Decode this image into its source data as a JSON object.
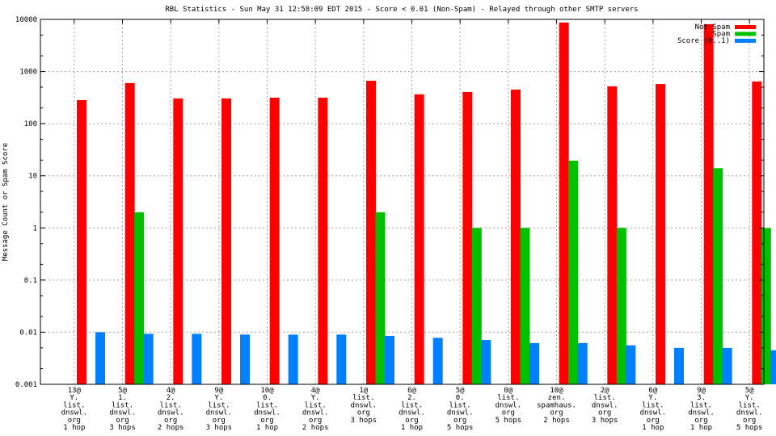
{
  "chart_data": {
    "type": "bar",
    "title": "RBL Statistics - Sun May 31 12:58:09 EDT 2015 - Score < 0.01 (Non-Spam) - Relayed through other SMTP servers",
    "xlabel": "",
    "ylabel": "Message Count or Spam Score",
    "yscale": "log",
    "ylim": [
      0.001,
      10000
    ],
    "yticks": [
      "0.001",
      "0.01",
      "0.1",
      "1",
      "10",
      "100",
      "1000",
      "10000"
    ],
    "ytick_values": [
      0.001,
      0.01,
      0.1,
      1,
      10,
      100,
      1000,
      10000
    ],
    "grid": true,
    "legend_position": "top-right",
    "categories": [
      [
        "13@",
        "Y.",
        "list.",
        "dnswl.",
        "org",
        "1 hop"
      ],
      [
        "5@",
        "1.",
        "list.",
        "dnswl.",
        "org",
        "3 hops"
      ],
      [
        "4@",
        "2.",
        "list.",
        "dnswl.",
        "org",
        "2 hops"
      ],
      [
        "9@",
        "Y.",
        "list.",
        "dnswl.",
        "org",
        "3 hops"
      ],
      [
        "10@",
        "0.",
        "list.",
        "dnswl.",
        "org",
        "1 hop"
      ],
      [
        "4@",
        "Y.",
        "list.",
        "dnswl.",
        "org",
        "2 hops"
      ],
      [
        "1@",
        "list.",
        "dnswl.",
        "org",
        "3 hops"
      ],
      [
        "6@",
        "2.",
        "list.",
        "dnswl.",
        "org",
        "1 hop"
      ],
      [
        "5@",
        "0.",
        "list.",
        "dnswl.",
        "org",
        "5 hops"
      ],
      [
        "0@",
        "list.",
        "dnswl.",
        "org",
        "5 hops"
      ],
      [
        "10@",
        "zen.",
        "spamhaus.",
        "org",
        "2 hops"
      ],
      [
        "2@",
        "list.",
        "dnswl.",
        "org",
        "3 hops"
      ],
      [
        "6@",
        "Y.",
        "list.",
        "dnswl.",
        "org",
        "1 hop"
      ],
      [
        "9@",
        "3.",
        "list.",
        "dnswl.",
        "org",
        "1 hop"
      ],
      [
        "5@",
        "Y.",
        "list.",
        "dnswl.",
        "org",
        "5 hops"
      ]
    ],
    "series": [
      {
        "name": "Not Spam",
        "color": "#ff0000",
        "values": [
          283,
          600,
          305,
          305,
          315,
          315,
          665,
          365,
          405,
          450,
          8700,
          520,
          575,
          8100,
          645
        ]
      },
      {
        "name": "Spam",
        "color": "#00c000",
        "values": [
          0,
          2,
          0,
          0,
          0,
          0,
          2,
          0,
          1,
          1,
          19.5,
          1,
          0,
          14,
          1
        ]
      },
      {
        "name": "Score (0..1)",
        "color": "#0080ff",
        "values": [
          0.01,
          0.0093,
          0.0093,
          0.009,
          0.009,
          0.009,
          0.0085,
          0.0078,
          0.0071,
          0.0062,
          0.0062,
          0.0056,
          0.005,
          0.005,
          0.0045
        ]
      }
    ]
  }
}
